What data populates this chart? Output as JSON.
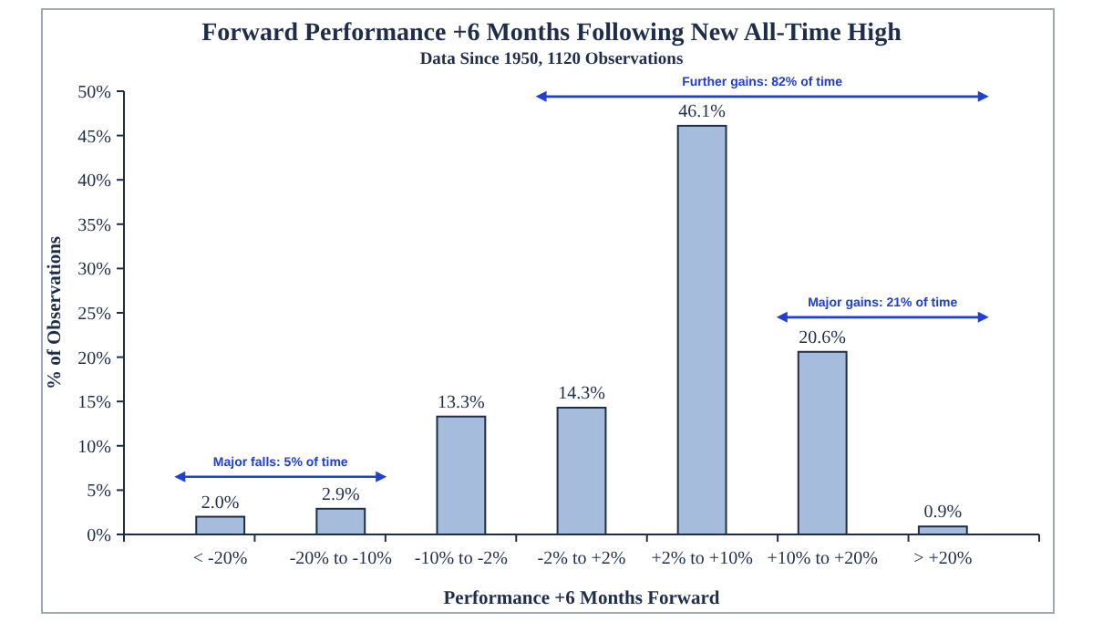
{
  "chart_data": {
    "type": "bar",
    "title": "Forward Performance +6 Months Following New All-Time High",
    "subtitle": "Data Since 1950, 1120 Observations",
    "xlabel": "Performance +6 Months Forward",
    "ylabel": "% of Observations",
    "categories": [
      "< -20%",
      "-20% to -10%",
      "-10% to -2%",
      "-2% to +2%",
      "+2% to +10%",
      "+10% to +20%",
      "> +20%"
    ],
    "values": [
      2.0,
      2.9,
      13.3,
      14.3,
      46.1,
      20.6,
      0.9
    ],
    "value_labels": [
      "2.0%",
      "2.9%",
      "13.3%",
      "14.3%",
      "46.1%",
      "20.6%",
      "0.9%"
    ],
    "color": "#a6bcdc",
    "ylim": [
      0,
      50
    ],
    "yticks": [
      {
        "value": 0,
        "label": "0%"
      },
      {
        "value": 5,
        "label": "5%"
      },
      {
        "value": 10,
        "label": "10%"
      },
      {
        "value": 15,
        "label": "15%"
      },
      {
        "value": 20,
        "label": "20%"
      },
      {
        "value": 25,
        "label": "25%"
      },
      {
        "value": 30,
        "label": "30%"
      },
      {
        "value": 35,
        "label": "35%"
      },
      {
        "value": 40,
        "label": "40%"
      },
      {
        "value": 45,
        "label": "45%"
      },
      {
        "value": 50,
        "label": "50%"
      }
    ],
    "annotations": [
      "Major falls: 5% of time",
      "Further gains: 82% of time",
      "Major gains: 21% of time"
    ],
    "grid": false
  }
}
